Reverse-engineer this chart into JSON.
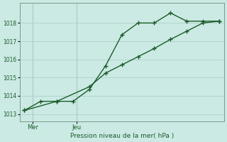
{
  "xlabel": "Pression niveau de la mer( hPa )",
  "background_color": "#cceae4",
  "grid_color": "#b0d4cc",
  "line_color": "#1a5c2a",
  "series1_x": [
    0,
    1,
    2,
    3,
    4,
    5,
    6,
    7,
    8,
    9,
    10,
    11,
    12
  ],
  "series1_y": [
    1013.2,
    1013.7,
    1013.7,
    1013.7,
    1014.35,
    1015.65,
    1017.35,
    1018.0,
    1018.0,
    1018.55,
    1018.1,
    1018.1,
    1018.1
  ],
  "series2_x": [
    0,
    2,
    4,
    5,
    6,
    7,
    8,
    9,
    10,
    11,
    12
  ],
  "series2_y": [
    1013.2,
    1013.7,
    1014.5,
    1015.25,
    1015.7,
    1016.15,
    1016.6,
    1017.1,
    1017.55,
    1018.0,
    1018.1
  ],
  "yticks": [
    1013,
    1014,
    1015,
    1016,
    1017,
    1018
  ],
  "ylim": [
    1012.6,
    1019.1
  ],
  "xlim": [
    -0.3,
    12.3
  ],
  "mer_x": 0.5,
  "jeu_x": 3.2,
  "marker_size": 3.0,
  "figwidth": 3.2,
  "figheight": 2.0,
  "dpi": 100
}
